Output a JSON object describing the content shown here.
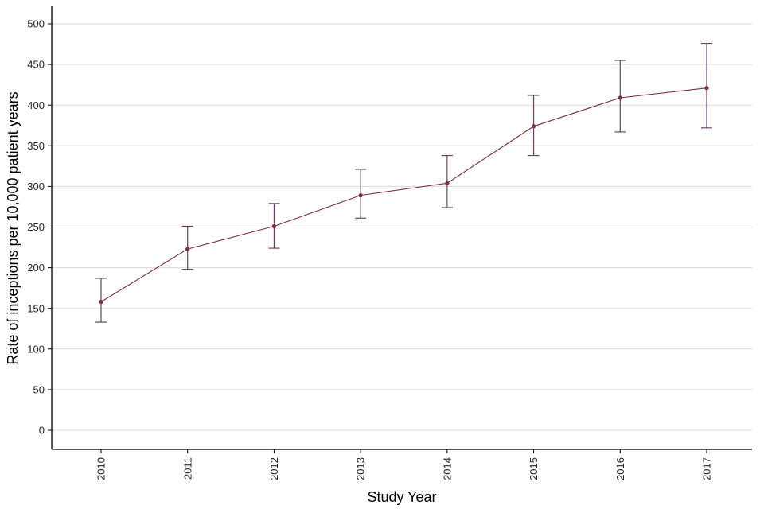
{
  "chart_data": {
    "type": "line",
    "title": "",
    "xlabel": "Study Year",
    "ylabel": "Rate of inceptions per 10,000 patient years",
    "categories": [
      "2010",
      "2011",
      "2012",
      "2013",
      "2014",
      "2015",
      "2016",
      "2017"
    ],
    "series": [
      {
        "name": "Rate of inceptions",
        "values": [
          158,
          223,
          251,
          289,
          304,
          374,
          409,
          421
        ],
        "ci_lower": [
          133,
          198,
          224,
          261,
          274,
          338,
          367,
          372
        ],
        "ci_upper": [
          187,
          251,
          279,
          321,
          338,
          412,
          455,
          476
        ]
      }
    ],
    "ylim": [
      0,
      500
    ],
    "ytick_step": 50,
    "grid": "horizontal",
    "legend": "none",
    "marker": "filled-circle",
    "error_bars": "capped",
    "colors": {
      "line": "#7e2f3f",
      "marker": "#7e2f3f",
      "error_bar": "#6a4462",
      "grid": "#d9d9d9",
      "axis": "#000000",
      "background": "#ffffff"
    }
  }
}
